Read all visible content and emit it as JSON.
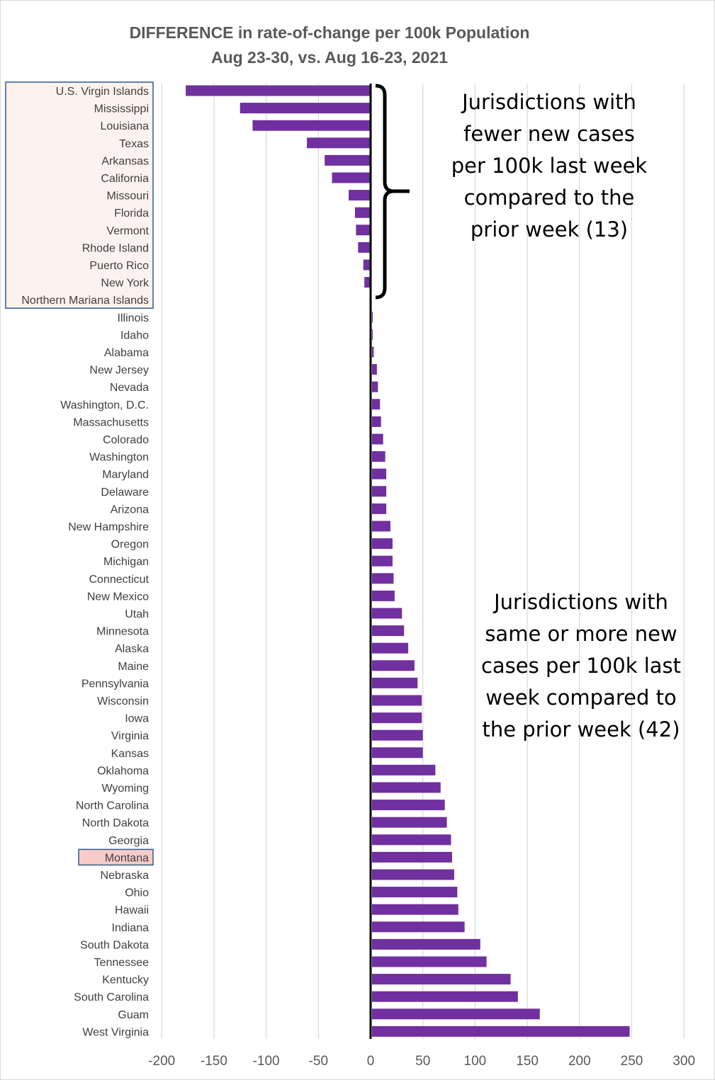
{
  "chart_data": {
    "type": "bar",
    "orientation": "horizontal",
    "title": "DIFFERENCE in rate-of-change per 100k Population",
    "subtitle": "Aug  23-30, vs. Aug 16-23, 2021",
    "xlabel": "",
    "ylabel": "",
    "xlim": [
      -200,
      300
    ],
    "xticks": [
      -200,
      -150,
      -100,
      -50,
      0,
      50,
      100,
      150,
      200,
      250,
      300
    ],
    "grid": "vertical",
    "bar_color": "#7030a0",
    "categories": [
      "U.S. Virgin Islands",
      "Mississippi",
      "Louisiana",
      "Texas",
      "Arkansas",
      "California",
      "Missouri",
      "Florida",
      "Vermont",
      "Rhode Island",
      "Puerto Rico",
      "New York",
      "Northern Mariana Islands",
      "Illinois",
      "Idaho",
      "Alabama",
      "New Jersey",
      "Nevada",
      "Washington, D.C.",
      "Massachusetts",
      "Colorado",
      "Washington",
      "Maryland",
      "Delaware",
      "Arizona",
      "New Hampshire",
      "Oregon",
      "Michigan",
      "Connecticut",
      "New Mexico",
      "Utah",
      "Minnesota",
      "Alaska",
      "Maine",
      "Pennsylvania",
      "Wisconsin",
      "Iowa",
      "Virginia",
      "Kansas",
      "Oklahoma",
      "Wyoming",
      "North Carolina",
      "North Dakota",
      "Georgia",
      "Montana",
      "Nebraska",
      "Ohio",
      "Hawaii",
      "Indiana",
      "South Dakota",
      "Tennessee",
      "Kentucky",
      "South Carolina",
      "Guam",
      "West Virginia"
    ],
    "values": [
      -177,
      -125,
      -113,
      -61,
      -44,
      -37,
      -21,
      -15,
      -14,
      -12,
      -7,
      -6,
      -1,
      2,
      2,
      3,
      6,
      7,
      9,
      10,
      12,
      14,
      15,
      15,
      15,
      19,
      21,
      21,
      22,
      23,
      30,
      32,
      36,
      42,
      45,
      49,
      49,
      50,
      50,
      62,
      67,
      71,
      73,
      77,
      78,
      80,
      83,
      84,
      90,
      105,
      111,
      134,
      141,
      162,
      248
    ],
    "highlight_box": {
      "group": [
        "U.S. Virgin Islands",
        "Mississippi",
        "Louisiana",
        "Texas",
        "Arkansas",
        "California",
        "Missouri",
        "Florida",
        "Vermont",
        "Rhode Island",
        "Puerto Rico",
        "New York",
        "Northern Mariana Islands"
      ],
      "group_fill": "#fdf3ee",
      "highlighted_state": "Montana",
      "state_fill": "#f8cbcb",
      "border_color": "#2e5c8a"
    },
    "annotations": {
      "top": [
        "Jurisdictions with",
        "fewer new cases",
        "per 100k last week",
        "compared to the",
        "prior week (13)"
      ],
      "bottom": [
        "Jurisdictions with",
        "same or more new",
        "cases per 100k last",
        "week compared to",
        "the prior week (42)"
      ]
    }
  }
}
